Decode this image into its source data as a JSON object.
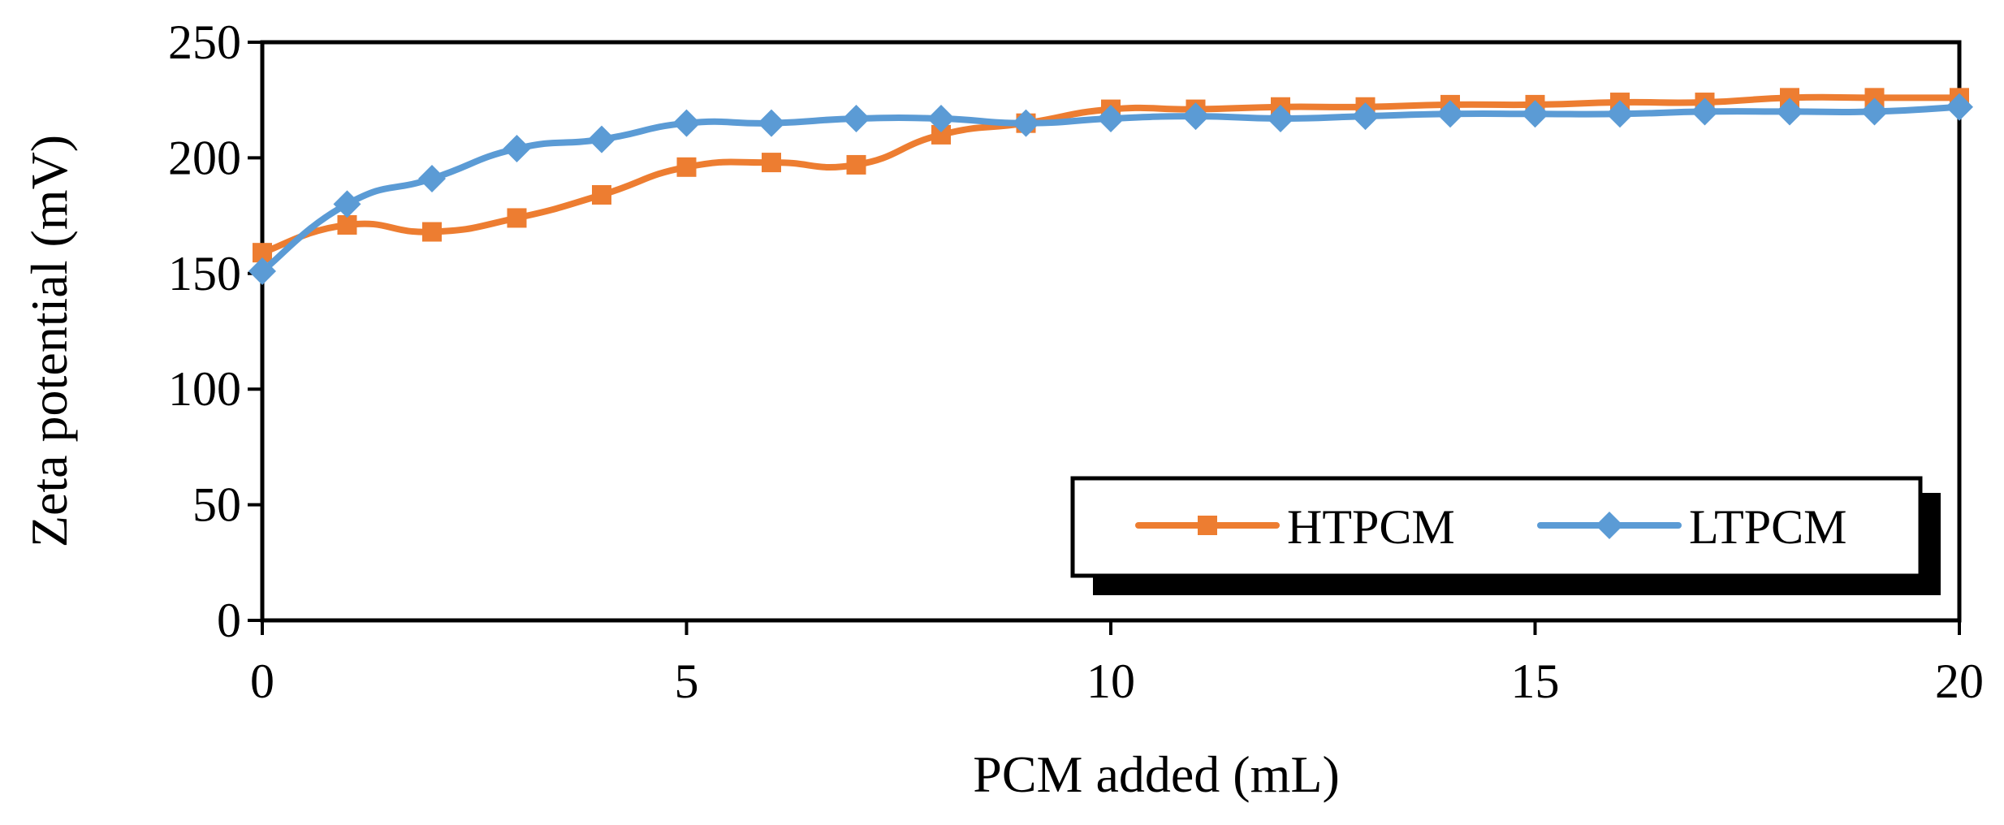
{
  "chart_data": {
    "type": "line",
    "title": "",
    "xlabel": "PCM added (mL)",
    "ylabel": "Zeta potential (mV)",
    "xlim": [
      0,
      20
    ],
    "ylim": [
      0,
      250
    ],
    "xticks": [
      0,
      5,
      10,
      15,
      20
    ],
    "yticks": [
      0,
      50,
      100,
      150,
      200,
      250
    ],
    "x": [
      0,
      1,
      2,
      3,
      4,
      5,
      6,
      7,
      8,
      9,
      10,
      11,
      12,
      13,
      14,
      15,
      16,
      17,
      18,
      19,
      20
    ],
    "series": [
      {
        "name": "HTPCM",
        "color": "#ED7D31",
        "marker": "square",
        "values": [
          159,
          171,
          168,
          174,
          184,
          196,
          198,
          197,
          210,
          215,
          221,
          221,
          222,
          222,
          223,
          223,
          224,
          224,
          226,
          226,
          226
        ]
      },
      {
        "name": "LTPCM",
        "color": "#5B9BD5",
        "marker": "diamond",
        "values": [
          151,
          180,
          191,
          204,
          208,
          215,
          215,
          217,
          217,
          215,
          217,
          218,
          217,
          218,
          219,
          219,
          219,
          220,
          220,
          220,
          222
        ]
      }
    ],
    "legend": {
      "position": "bottom-right",
      "entries": [
        "HTPCM",
        "LTPCM"
      ]
    },
    "grid": false
  }
}
